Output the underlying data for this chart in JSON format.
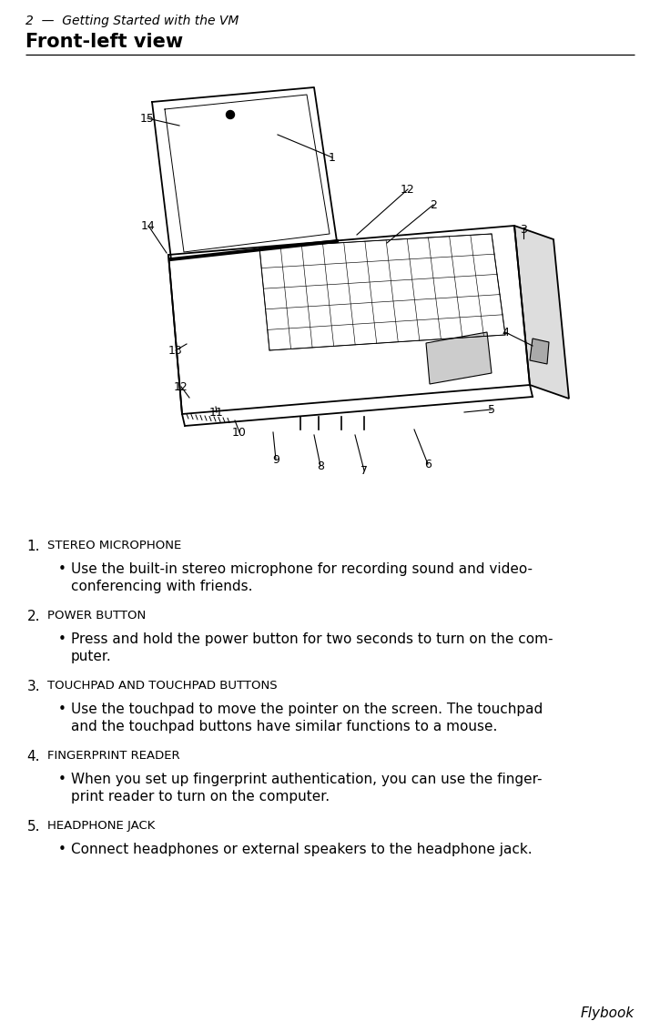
{
  "page_header": "2  —  Getting Started with the VM",
  "section_title": "Front-left view",
  "footer": "Flybook",
  "background_color": "#ffffff",
  "text_color": "#000000",
  "header_fontsize": 10,
  "title_fontsize": 15,
  "body_fontsize": 11,
  "small_caps_fontsize": 9.5,
  "items": [
    {
      "number": "1.",
      "heading": "Stereo Microphone",
      "bullet": "Use the built-in stereo microphone for recording sound and video-\nconferencing with friends."
    },
    {
      "number": "2.",
      "heading": "Power button",
      "bullet": "Press and hold the power button for two seconds to turn on the com-\nputer."
    },
    {
      "number": "3.",
      "heading": "Touchpad and touchpad buttons",
      "bullet": "Use the touchpad to move the pointer on the screen. The touchpad\nand the touchpad buttons have similar functions to a mouse."
    },
    {
      "number": "4.",
      "heading": "Fingerprint reader",
      "bullet": "When you set up fingerprint authentication, you can use the finger-\nprint reader to turn on the computer."
    },
    {
      "number": "5.",
      "heading": "Headphone jack",
      "bullet": "Connect headphones or external speakers to the headphone jack."
    }
  ]
}
